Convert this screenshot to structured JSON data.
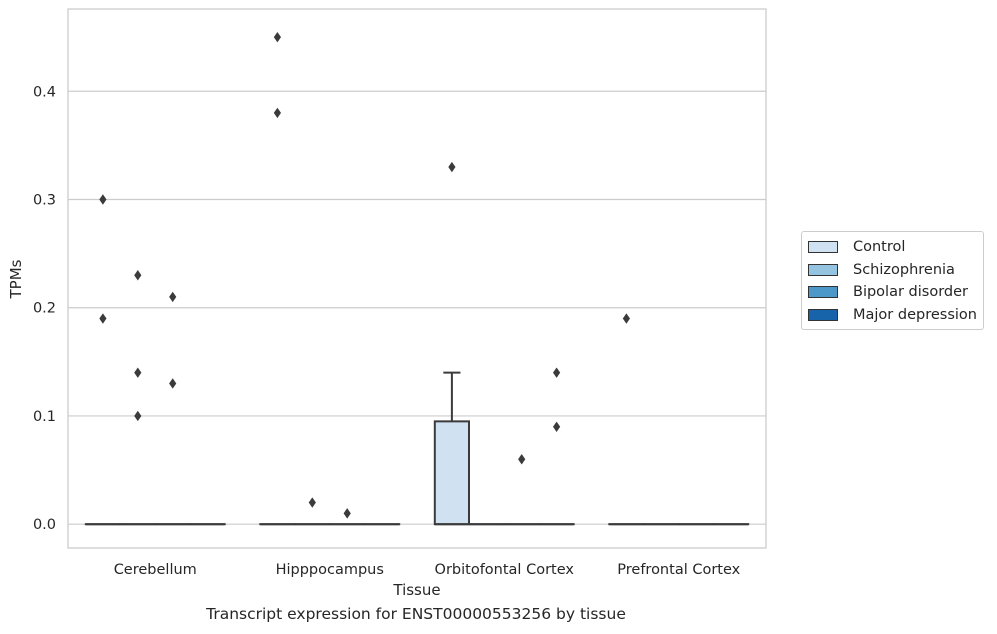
{
  "chart_data": {
    "type": "box",
    "xlabel": "Tissue",
    "ylabel": "TPMs",
    "ylim": [
      -0.022,
      0.476
    ],
    "yticks": [
      0.0,
      0.1,
      0.2,
      0.3,
      0.4
    ],
    "ytick_labels": [
      "0.0",
      "0.1",
      "0.2",
      "0.3",
      "0.4"
    ],
    "grid": "horizontal",
    "legend_position": "right",
    "categories": [
      "Cerebellum",
      "Hipppocampus",
      "Orbitofontal Cortex",
      "Prefrontal Cortex"
    ],
    "series": [
      {
        "name": "Control",
        "color": "#d0e1f2"
      },
      {
        "name": "Schizophrenia",
        "color": "#94c4df"
      },
      {
        "name": "Bipolar disorder",
        "color": "#4b98c9"
      },
      {
        "name": "Major depression",
        "color": "#1764ab"
      }
    ],
    "boxes": [
      {
        "category": "Cerebellum",
        "series": "Control",
        "q1": 0,
        "median": 0,
        "q3": 0,
        "whisker_low": 0,
        "whisker_high": 0,
        "outliers": [
          0.19,
          0.3
        ]
      },
      {
        "category": "Cerebellum",
        "series": "Schizophrenia",
        "q1": 0,
        "median": 0,
        "q3": 0,
        "whisker_low": 0,
        "whisker_high": 0,
        "outliers": [
          0.1,
          0.14,
          0.23
        ]
      },
      {
        "category": "Cerebellum",
        "series": "Bipolar disorder",
        "q1": 0,
        "median": 0,
        "q3": 0,
        "whisker_low": 0,
        "whisker_high": 0,
        "outliers": [
          0.13,
          0.21
        ]
      },
      {
        "category": "Cerebellum",
        "series": "Major depression",
        "q1": 0,
        "median": 0,
        "q3": 0,
        "whisker_low": 0,
        "whisker_high": 0,
        "outliers": []
      },
      {
        "category": "Hipppocampus",
        "series": "Control",
        "q1": 0,
        "median": 0,
        "q3": 0,
        "whisker_low": 0,
        "whisker_high": 0,
        "outliers": [
          0.38,
          0.45
        ]
      },
      {
        "category": "Hipppocampus",
        "series": "Schizophrenia",
        "q1": 0,
        "median": 0,
        "q3": 0,
        "whisker_low": 0,
        "whisker_high": 0,
        "outliers": [
          0.02
        ]
      },
      {
        "category": "Hipppocampus",
        "series": "Bipolar disorder",
        "q1": 0,
        "median": 0,
        "q3": 0,
        "whisker_low": 0,
        "whisker_high": 0,
        "outliers": [
          0.01
        ]
      },
      {
        "category": "Hipppocampus",
        "series": "Major depression",
        "q1": 0,
        "median": 0,
        "q3": 0,
        "whisker_low": 0,
        "whisker_high": 0,
        "outliers": []
      },
      {
        "category": "Orbitofontal Cortex",
        "series": "Control",
        "q1": 0,
        "median": 0,
        "q3": 0.095,
        "whisker_low": 0,
        "whisker_high": 0.14,
        "outliers": [
          0.33
        ]
      },
      {
        "category": "Orbitofontal Cortex",
        "series": "Schizophrenia",
        "q1": 0,
        "median": 0,
        "q3": 0,
        "whisker_low": 0,
        "whisker_high": 0,
        "outliers": []
      },
      {
        "category": "Orbitofontal Cortex",
        "series": "Bipolar disorder",
        "q1": 0,
        "median": 0,
        "q3": 0,
        "whisker_low": 0,
        "whisker_high": 0,
        "outliers": [
          0.06
        ]
      },
      {
        "category": "Orbitofontal Cortex",
        "series": "Major depression",
        "q1": 0,
        "median": 0,
        "q3": 0,
        "whisker_low": 0,
        "whisker_high": 0,
        "outliers": [
          0.09,
          0.14
        ]
      },
      {
        "category": "Prefrontal Cortex",
        "series": "Control",
        "q1": 0,
        "median": 0,
        "q3": 0,
        "whisker_low": 0,
        "whisker_high": 0,
        "outliers": [
          0.19
        ]
      },
      {
        "category": "Prefrontal Cortex",
        "series": "Schizophrenia",
        "q1": 0,
        "median": 0,
        "q3": 0,
        "whisker_low": 0,
        "whisker_high": 0,
        "outliers": []
      },
      {
        "category": "Prefrontal Cortex",
        "series": "Bipolar disorder",
        "q1": 0,
        "median": 0,
        "q3": 0,
        "whisker_low": 0,
        "whisker_high": 0,
        "outliers": []
      },
      {
        "category": "Prefrontal Cortex",
        "series": "Major depression",
        "q1": 0,
        "median": 0,
        "q3": 0,
        "whisker_low": 0,
        "whisker_high": 0,
        "outliers": []
      }
    ]
  },
  "caption": "Transcript expression for ENST00000553256 by tissue"
}
